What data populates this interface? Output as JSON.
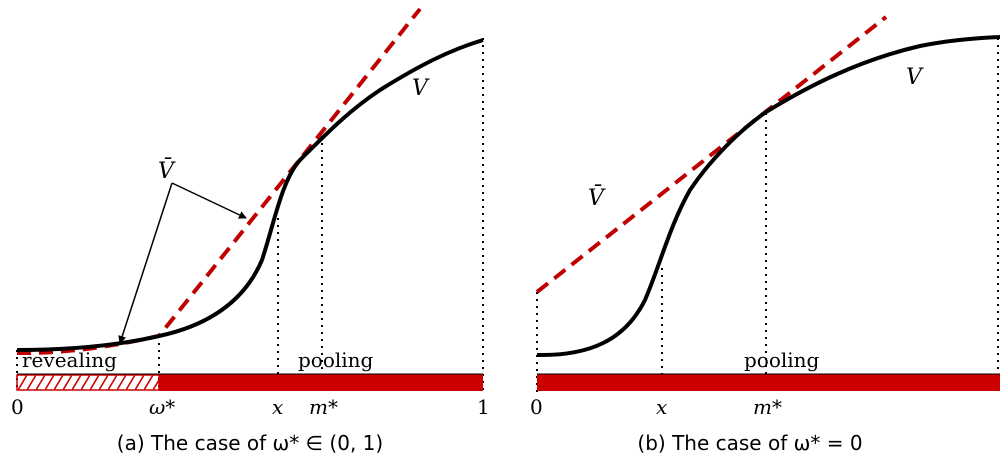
{
  "figure": {
    "panel_a": {
      "caption": "(a) The case of ω* ∈ (0, 1)",
      "labels": {
        "v": "V",
        "vbar": "V̄",
        "revealing": "revealing",
        "pooling": "pooling"
      },
      "ticks": {
        "zero": "0",
        "omega": "ω*",
        "x": "x",
        "m": "m*",
        "one": "1"
      }
    },
    "panel_b": {
      "caption": "(b) The case of ω* = 0",
      "labels": {
        "v": "V",
        "vbar": "V̄",
        "pooling": "pooling"
      },
      "ticks": {
        "zero": "0",
        "x": "x",
        "m": "m*"
      }
    },
    "colors": {
      "curve": "#000000",
      "tangent": "#c00000",
      "bar": "#cc0000"
    }
  }
}
